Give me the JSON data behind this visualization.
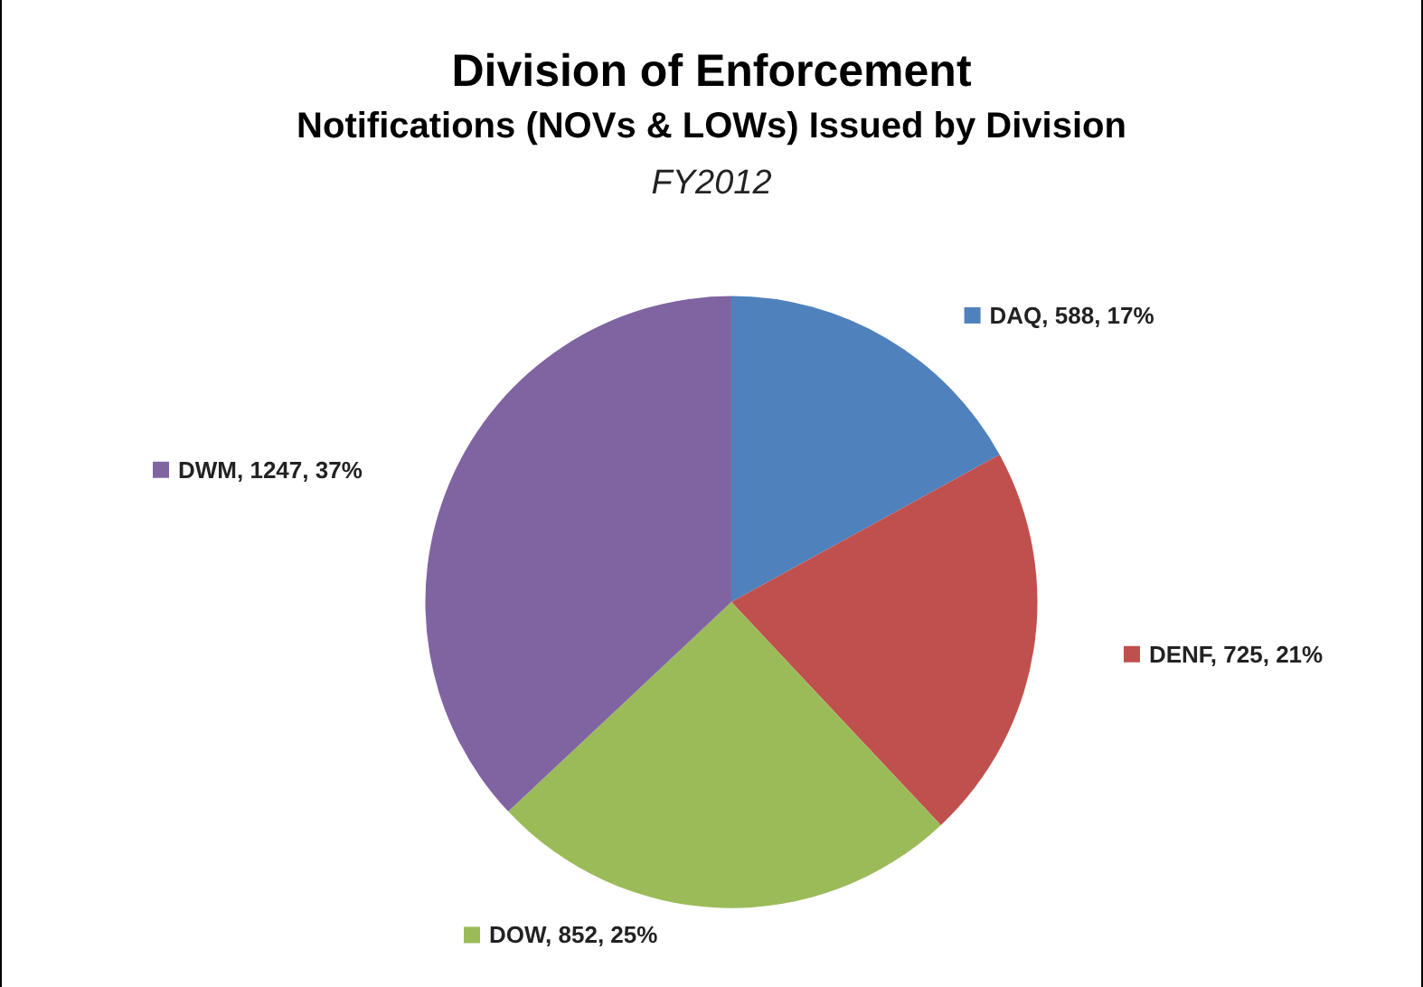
{
  "chart_data": {
    "type": "pie",
    "title": "Division of Enforcement",
    "subtitle": "Notifications (NOVs & LOWs) Issued by Division",
    "annotations": [
      "FY2012"
    ],
    "categories": [
      "DAQ",
      "DENF",
      "DOW",
      "DWM"
    ],
    "values": [
      17,
      21,
      25,
      37
    ],
    "value_labels": [
      "588, 17%",
      "725, 21%",
      "852, 25%",
      "1247, 37%"
    ],
    "colors": [
      "#4f81bd",
      "#c0504d",
      "#9bbb59",
      "#8064a2"
    ],
    "legend": "right"
  }
}
